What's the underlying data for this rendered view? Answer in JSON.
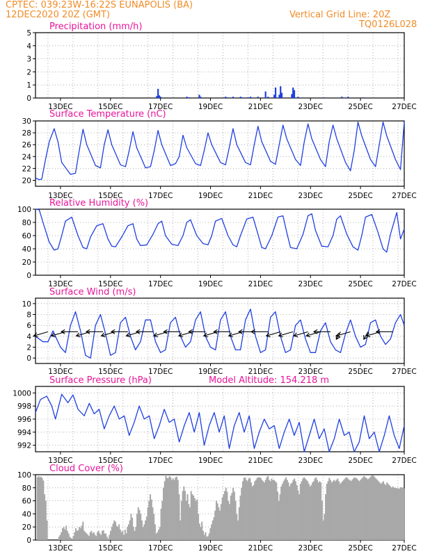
{
  "header": {
    "line1_left": "CPTEC:   039:23W-16:22S   EUNAPOLIS (BA)",
    "line2_left": "12DEC2020 20Z (GMT)",
    "line1_right": "Vertical Grid Line: 20Z",
    "line2_right": "TQ0126L028"
  },
  "colors": {
    "header": "#f08c28",
    "title": "#e8149a",
    "line": "#1f3fe0",
    "cloud": "#a8a8a8"
  },
  "chart_data": [
    {
      "type": "bar",
      "title": "Precipitation (mm/h)",
      "xticklabels": [
        "13DEC",
        "15DEC",
        "17DEC",
        "19DEC",
        "21DEC",
        "23DEC",
        "25DEC",
        "27DEC"
      ],
      "ylim": [
        0,
        5
      ],
      "yticks": [
        0,
        1,
        2,
        3,
        4,
        5
      ],
      "grid": true,
      "x": [
        4.85,
        4.9,
        4.95,
        5.0,
        6.05,
        6.1,
        6.15,
        6.55,
        6.6,
        7.6,
        7.65,
        7.9,
        8.2,
        8.25,
        8.5,
        8.6,
        8.9,
        9.2,
        9.3,
        9.55,
        9.6,
        9.75,
        9.8,
        9.85,
        10.25,
        10.3,
        10.35,
        10.5,
        11.55,
        12.25,
        12.5,
        13.1
      ],
      "values": [
        0.15,
        0.7,
        0.2,
        0.1,
        0.1,
        0.05,
        0.05,
        0.25,
        0.1,
        0.1,
        0.05,
        0.1,
        0.1,
        0.05,
        0.05,
        0.1,
        0.1,
        0.5,
        0.1,
        0.25,
        0.8,
        0.25,
        0.9,
        0.4,
        0.3,
        0.8,
        0.6,
        0.1,
        0.05,
        0.1,
        0.1,
        0.05
      ]
    },
    {
      "type": "line",
      "title": "Surface Temperature (nC)",
      "xticklabels": [
        "13DEC",
        "15DEC",
        "17DEC",
        "19DEC",
        "21DEC",
        "23DEC",
        "25DEC",
        "27DEC"
      ],
      "ylim": [
        19,
        30
      ],
      "yticks": [
        20,
        22,
        24,
        26,
        28,
        30
      ],
      "grid": true,
      "series": [
        {
          "x": [
            0,
            0.15,
            0.25,
            0.4,
            0.55,
            0.75,
            0.9,
            1.05,
            1.4,
            1.6,
            1.75,
            1.9,
            2.05,
            2.4,
            2.6,
            2.75,
            2.9,
            3.05,
            3.4,
            3.6,
            3.75,
            3.9,
            4.05,
            4.4,
            4.6,
            4.75,
            4.9,
            5.05,
            5.4,
            5.6,
            5.75,
            5.9,
            6.05,
            6.4,
            6.6,
            6.75,
            6.9,
            7.05,
            7.4,
            7.6,
            7.75,
            7.9,
            8.05,
            8.4,
            8.6,
            8.75,
            8.9,
            9.05,
            9.4,
            9.6,
            9.75,
            9.9,
            10.05,
            10.4,
            10.6,
            10.75,
            10.9,
            11.05,
            11.4,
            11.6,
            11.75,
            11.9,
            12.05,
            12.4,
            12.6,
            12.75,
            12.9,
            13.05,
            13.4,
            13.6,
            13.75,
            13.9,
            14.05,
            14.4,
            14.6,
            14.75
          ],
          "values": [
            20.4,
            20.1,
            20.2,
            23.5,
            26.5,
            28.7,
            26.5,
            23.0,
            21.0,
            21.2,
            25.0,
            28.6,
            26.0,
            22.5,
            22.1,
            26.0,
            28.5,
            26.0,
            22.6,
            22.3,
            25.0,
            28.2,
            25.5,
            22.1,
            22.3,
            25.0,
            28.4,
            26.0,
            22.5,
            22.8,
            24.0,
            27.6,
            25.5,
            22.8,
            22.5,
            25.0,
            28.0,
            26.0,
            23.0,
            22.6,
            25.5,
            28.7,
            26.0,
            23.0,
            22.6,
            26.0,
            29.1,
            26.5,
            23.2,
            22.7,
            26.0,
            29.3,
            27.0,
            23.5,
            22.5,
            26.5,
            29.5,
            27.0,
            23.5,
            22.3,
            26.5,
            29.3,
            27.0,
            23.0,
            21.6,
            25.0,
            29.8,
            27.5,
            23.5,
            22.3,
            26.0,
            29.8,
            27.5,
            23.5,
            21.8,
            29.9
          ]
        }
      ]
    },
    {
      "type": "line",
      "title": "Relative Humidity (%)",
      "xticklabels": [
        "13DEC",
        "15DEC",
        "17DEC",
        "19DEC",
        "21DEC",
        "23DEC",
        "25DEC",
        "27DEC"
      ],
      "ylim": [
        0,
        100
      ],
      "yticks": [
        0,
        20,
        40,
        60,
        80,
        100
      ],
      "grid": true,
      "series": [
        {
          "x": [
            0,
            0.15,
            0.3,
            0.55,
            0.75,
            0.9,
            1.05,
            1.2,
            1.45,
            1.7,
            1.9,
            2.05,
            2.2,
            2.45,
            2.7,
            2.9,
            3.05,
            3.2,
            3.45,
            3.7,
            3.9,
            4.05,
            4.2,
            4.45,
            4.7,
            4.9,
            5.05,
            5.2,
            5.45,
            5.7,
            5.9,
            6.05,
            6.2,
            6.45,
            6.7,
            6.9,
            7.05,
            7.2,
            7.45,
            7.7,
            7.9,
            8.05,
            8.2,
            8.45,
            8.7,
            8.9,
            9.05,
            9.2,
            9.45,
            9.7,
            9.9,
            10.05,
            10.2,
            10.45,
            10.7,
            10.9,
            11.05,
            11.2,
            11.45,
            11.7,
            11.9,
            12.05,
            12.2,
            12.45,
            12.7,
            12.9,
            13.05,
            13.2,
            13.45,
            13.7,
            13.9,
            14.05,
            14.2,
            14.45,
            14.6,
            14.75
          ],
          "values": [
            100,
            99,
            80,
            50,
            38,
            40,
            60,
            82,
            88,
            60,
            42,
            40,
            58,
            75,
            78,
            55,
            44,
            43,
            58,
            75,
            78,
            55,
            45,
            46,
            62,
            78,
            82,
            60,
            47,
            45,
            60,
            80,
            84,
            60,
            48,
            46,
            60,
            82,
            86,
            60,
            46,
            43,
            60,
            85,
            88,
            62,
            42,
            40,
            60,
            88,
            90,
            65,
            42,
            40,
            62,
            90,
            93,
            68,
            44,
            43,
            60,
            85,
            90,
            62,
            43,
            38,
            60,
            88,
            92,
            65,
            40,
            35,
            62,
            95,
            55,
            70
          ]
        }
      ]
    },
    {
      "type": "line",
      "title": "Surface Wind (m/s)",
      "xticklabels": [
        "13DEC",
        "15DEC",
        "17DEC",
        "19DEC",
        "21DEC",
        "23DEC",
        "25DEC",
        "27DEC"
      ],
      "ylim": [
        -1,
        11
      ],
      "yticks": [
        0,
        2,
        4,
        6,
        8,
        10
      ],
      "grid": true,
      "series": [
        {
          "x": [
            0,
            0.15,
            0.3,
            0.5,
            0.7,
            0.85,
            1.0,
            1.2,
            1.4,
            1.6,
            1.8,
            2.0,
            2.2,
            2.4,
            2.6,
            2.8,
            3.0,
            3.2,
            3.4,
            3.6,
            3.8,
            4.0,
            4.2,
            4.4,
            4.6,
            4.8,
            5.0,
            5.2,
            5.4,
            5.6,
            5.8,
            6.0,
            6.2,
            6.4,
            6.6,
            6.8,
            7.0,
            7.2,
            7.4,
            7.6,
            7.8,
            8.0,
            8.2,
            8.4,
            8.6,
            8.8,
            9.0,
            9.2,
            9.4,
            9.6,
            9.8,
            10.0,
            10.2,
            10.4,
            10.6,
            10.8,
            11.0,
            11.2,
            11.4,
            11.6,
            11.8,
            12.0,
            12.2,
            12.4,
            12.6,
            12.8,
            13.0,
            13.2,
            13.4,
            13.6,
            13.8,
            14.0,
            14.2,
            14.4,
            14.6,
            14.75
          ],
          "values": [
            4.0,
            3.5,
            3.0,
            3.0,
            5.0,
            3.5,
            2.0,
            1.0,
            6.0,
            8.5,
            5.0,
            0.5,
            0.0,
            6.0,
            8.0,
            4.5,
            0.5,
            1.0,
            6.5,
            7.5,
            4.0,
            1.5,
            3.0,
            7.0,
            7.0,
            3.0,
            1.0,
            1.5,
            6.5,
            7.5,
            4.0,
            2.0,
            3.0,
            7.0,
            8.5,
            4.0,
            2.0,
            1.5,
            7.0,
            8.5,
            4.0,
            1.5,
            1.5,
            7.0,
            9.0,
            4.0,
            1.0,
            1.5,
            7.5,
            8.5,
            4.0,
            1.0,
            1.5,
            6.0,
            7.0,
            3.5,
            1.0,
            1.0,
            5.0,
            6.5,
            3.0,
            1.5,
            1.0,
            4.5,
            7.0,
            4.0,
            2.0,
            2.5,
            6.5,
            7.0,
            4.0,
            2.5,
            3.5,
            6.5,
            8.0,
            6.0
          ]
        }
      ]
    },
    {
      "type": "line",
      "title": "Surface Pressure (hPa)",
      "annotation": "Model Altitude: 154.218 m",
      "xticklabels": [
        "13DEC",
        "15DEC",
        "17DEC",
        "19DEC",
        "21DEC",
        "23DEC",
        "25DEC",
        "27DEC"
      ],
      "ylim": [
        991,
        1001
      ],
      "yticks": [
        992,
        994,
        996,
        998,
        1000
      ],
      "grid": true,
      "series": [
        {
          "x": [
            0,
            0.2,
            0.45,
            0.65,
            0.8,
            1.05,
            1.3,
            1.5,
            1.7,
            1.95,
            2.15,
            2.35,
            2.55,
            2.75,
            2.95,
            3.15,
            3.35,
            3.55,
            3.75,
            3.95,
            4.15,
            4.35,
            4.55,
            4.75,
            4.95,
            5.15,
            5.35,
            5.55,
            5.75,
            5.95,
            6.15,
            6.35,
            6.55,
            6.75,
            6.95,
            7.15,
            7.35,
            7.55,
            7.75,
            7.95,
            8.15,
            8.35,
            8.55,
            8.75,
            8.95,
            9.15,
            9.35,
            9.55,
            9.75,
            9.95,
            10.15,
            10.35,
            10.55,
            10.75,
            10.95,
            11.15,
            11.35,
            11.55,
            11.75,
            11.95,
            12.15,
            12.35,
            12.55,
            12.75,
            12.95,
            13.15,
            13.35,
            13.55,
            13.75,
            13.95,
            14.15,
            14.35,
            14.55,
            14.75
          ],
          "values": [
            997.0,
            999.0,
            999.5,
            998.0,
            996.0,
            999.8,
            998.5,
            999.7,
            997.5,
            996.5,
            998.4,
            996.8,
            997.5,
            994.5,
            996.5,
            998.0,
            996.0,
            996.5,
            993.5,
            995.5,
            998.0,
            996.0,
            996.5,
            993.0,
            995.0,
            997.5,
            995.5,
            996.0,
            992.5,
            995.0,
            997.0,
            994.0,
            997.0,
            992.0,
            995.0,
            997.0,
            994.0,
            996.5,
            991.5,
            995.0,
            997.0,
            994.0,
            996.5,
            991.5,
            994.0,
            996.0,
            994.5,
            995.0,
            991.5,
            994.0,
            996.0,
            993.5,
            995.5,
            991.0,
            993.5,
            996.0,
            993.0,
            994.5,
            991.0,
            993.0,
            996.0,
            993.5,
            994.0,
            991.0,
            992.5,
            996.5,
            993.0,
            994.0,
            991.0,
            993.5,
            996.5,
            993.5,
            991.5,
            995.0
          ]
        }
      ]
    },
    {
      "type": "bar",
      "title": "Cloud Cover (%)",
      "xticklabels": [
        "13DEC",
        "15DEC",
        "17DEC",
        "19DEC",
        "21DEC",
        "23DEC",
        "25DEC",
        "27DEC"
      ],
      "ylim": [
        0,
        100
      ],
      "yticks": [
        0,
        20,
        40,
        60,
        80,
        100
      ],
      "grid": true,
      "values": [
        0,
        96,
        98,
        96,
        97,
        95,
        91,
        70,
        60,
        30,
        0,
        0,
        0,
        0,
        0,
        0,
        0,
        0,
        0,
        5,
        8,
        12,
        18,
        20,
        16,
        22,
        14,
        10,
        5,
        3,
        2,
        6,
        12,
        18,
        14,
        15,
        20,
        18,
        22,
        28,
        14,
        12,
        10,
        8,
        6,
        12,
        14,
        10,
        12,
        8,
        6,
        12,
        14,
        10,
        8,
        14,
        15,
        10,
        10,
        5,
        2,
        8,
        14,
        20,
        25,
        30,
        28,
        22,
        20,
        24,
        16,
        12,
        14,
        8,
        16,
        10,
        20,
        24,
        30,
        40,
        34,
        20,
        14,
        20,
        40,
        50,
        46,
        40,
        30,
        20,
        24,
        30,
        36,
        50,
        60,
        70,
        62,
        50,
        40,
        24,
        10,
        12,
        16,
        20,
        48,
        60,
        80,
        90,
        100,
        95,
        95,
        98,
        96,
        92,
        94,
        92,
        96,
        97,
        92,
        70,
        30,
        60,
        75,
        82,
        75,
        60,
        70,
        55,
        50,
        75,
        70,
        68,
        64,
        60,
        62,
        40,
        25,
        20,
        28,
        14,
        8,
        12,
        5,
        6,
        10,
        18,
        24,
        30,
        35,
        45,
        60,
        56,
        50,
        45,
        55,
        65,
        70,
        75,
        80,
        74,
        60,
        55,
        68,
        72,
        80,
        74,
        60,
        40,
        30,
        50,
        68,
        80,
        90,
        95,
        96,
        92,
        90,
        94,
        95,
        88,
        82,
        84,
        90,
        92,
        95,
        96,
        96,
        95,
        92,
        90,
        88,
        92,
        96,
        98,
        92,
        90,
        94,
        92,
        92,
        90,
        88,
        74,
        60,
        70,
        82,
        86,
        90,
        93,
        96,
        92,
        88,
        82,
        86,
        88,
        92,
        94,
        90,
        84,
        76,
        70,
        86,
        90,
        94,
        96,
        94,
        92,
        90,
        86,
        82,
        84,
        88,
        90,
        94,
        96,
        92,
        88,
        90,
        88,
        60,
        30,
        40,
        70,
        86,
        90,
        95,
        92,
        88,
        90,
        92,
        90,
        92,
        94,
        90,
        86,
        88,
        90,
        92,
        94,
        96,
        95,
        93,
        92,
        90,
        92,
        94,
        96,
        95,
        94,
        92,
        90,
        92,
        94,
        96,
        98,
        96,
        95,
        93,
        94,
        96,
        98,
        99,
        98,
        96,
        94,
        92,
        90,
        88,
        86,
        88,
        90,
        86,
        84,
        88,
        86,
        84,
        82,
        80,
        82,
        80,
        80,
        79,
        80,
        78,
        80,
        81,
        80,
        79
      ]
    }
  ],
  "wind_barbs": [
    {
      "x": 0.5,
      "dir": "sw"
    },
    {
      "x": 1.2,
      "dir": "sw"
    },
    {
      "x": 1.7,
      "dir": "w"
    },
    {
      "x": 2.2,
      "dir": "sw"
    },
    {
      "x": 2.7,
      "dir": "w"
    },
    {
      "x": 3.2,
      "dir": "sw"
    },
    {
      "x": 3.7,
      "dir": "w"
    },
    {
      "x": 4.2,
      "dir": "sw"
    },
    {
      "x": 4.7,
      "dir": "w"
    },
    {
      "x": 5.3,
      "dir": "sw"
    },
    {
      "x": 5.8,
      "dir": "w"
    },
    {
      "x": 6.3,
      "dir": "sw"
    },
    {
      "x": 6.8,
      "dir": "w"
    },
    {
      "x": 7.3,
      "dir": "sw"
    },
    {
      "x": 7.8,
      "dir": "w"
    },
    {
      "x": 8.3,
      "dir": "sw"
    },
    {
      "x": 8.8,
      "dir": "w"
    },
    {
      "x": 9.3,
      "dir": "w"
    },
    {
      "x": 9.8,
      "dir": "sw"
    },
    {
      "x": 10.3,
      "dir": "sw"
    },
    {
      "x": 10.9,
      "dir": "sw"
    },
    {
      "x": 11.4,
      "dir": "sw"
    },
    {
      "x": 11.8,
      "dir": "w"
    },
    {
      "x": 12.2,
      "dir": "s"
    },
    {
      "x": 12.6,
      "dir": "sw"
    },
    {
      "x": 13.3,
      "dir": "s"
    },
    {
      "x": 13.8,
      "dir": "sw"
    },
    {
      "x": 14.3,
      "dir": "w"
    }
  ]
}
